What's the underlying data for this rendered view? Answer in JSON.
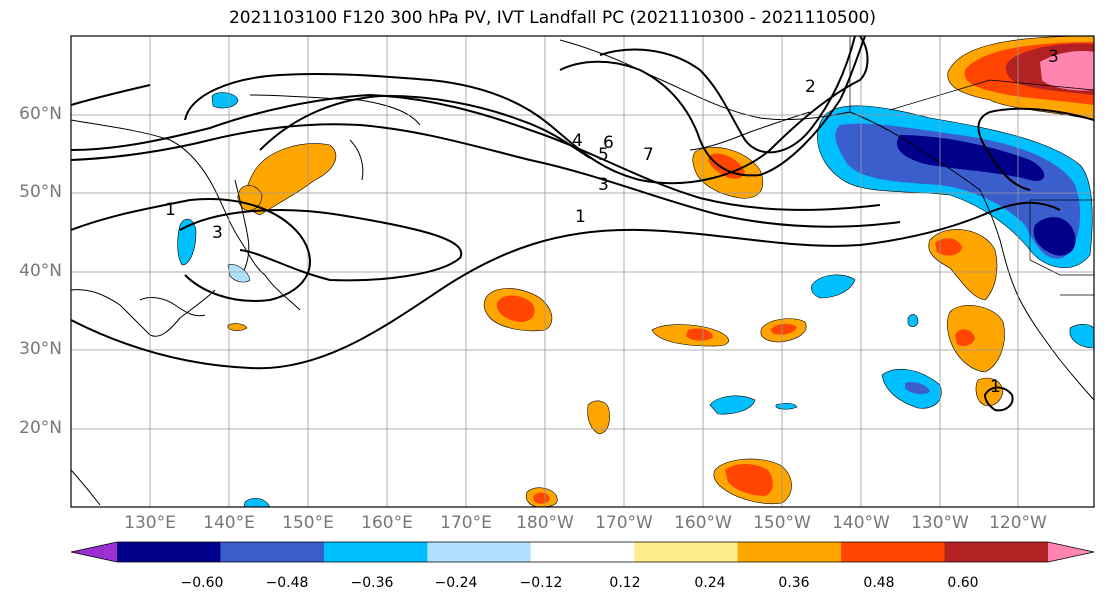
{
  "title": "2021103100 F120 300 hPa PV, IVT Landfall PC (2021110300 - 2021110500)",
  "lat_labels": [
    "60°N",
    "50°N",
    "40°N",
    "30°N",
    "20°N"
  ],
  "lon_labels": [
    "130°E",
    "140°E",
    "150°E",
    "160°E",
    "170°E",
    "180°W",
    "170°W",
    "160°W",
    "150°W",
    "140°W",
    "130°W",
    "120°W"
  ],
  "colorbar": {
    "tick_labels": [
      "−0.60",
      "−0.48",
      "−0.36",
      "−0.24",
      "−0.12",
      "0.12",
      "0.24",
      "0.36",
      "0.48",
      "0.60"
    ],
    "colors": [
      "#9b30d0",
      "#00008b",
      "#3a5fcd",
      "#00bfff",
      "#b0e2ff",
      "#ffffff",
      "#ffec8b",
      "#ffa500",
      "#ff4500",
      "#b22222",
      "#ff85b0"
    ]
  },
  "contour_labels": [
    "1",
    "2",
    "3",
    "4",
    "5",
    "6",
    "7"
  ]
}
